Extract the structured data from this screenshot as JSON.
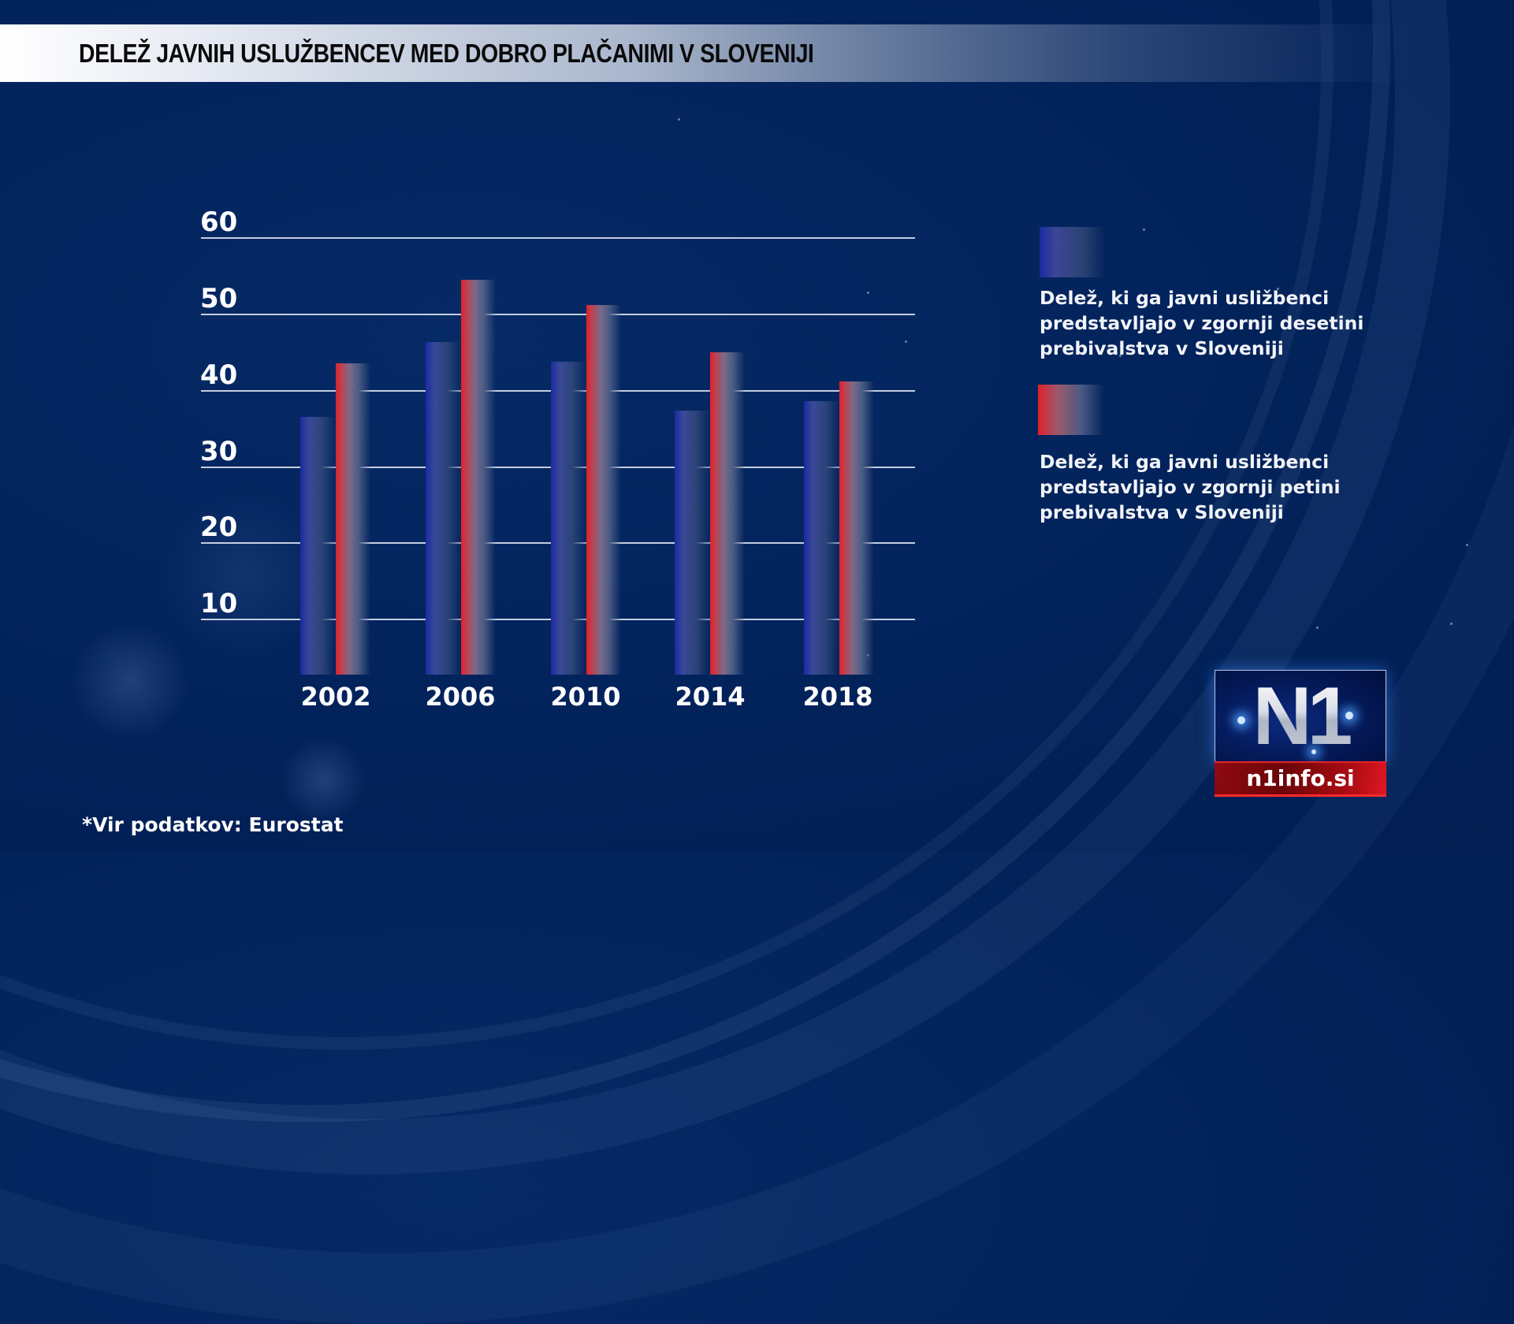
{
  "title": "DELEŽ JAVNIH USLUŽBENCEV MED DOBRO PLAČANIMI V SLOVENIJI",
  "footnote": "*Vir podatkov: Eurostat",
  "logo": {
    "mark": "N1",
    "site": "n1info.si"
  },
  "colors": {
    "background": "#02225a",
    "series_blue": "#1a2ba0",
    "series_red": "#e0202c",
    "logo_red": "#b00d14"
  },
  "legend": [
    {
      "series": "blue",
      "lines": [
        "Delež, ki ga javni usližbenci",
        "predstavljajo v zgornji desetini",
        "prebivalstva v Sloveniji"
      ]
    },
    {
      "series": "red",
      "lines": [
        "Delež, ki ga javni usližbenci",
        "predstavljajo v zgornji petini",
        "prebivalstva v Sloveniji"
      ]
    }
  ],
  "y_ticks": [
    "60",
    "50",
    "40",
    "30",
    "20",
    "10"
  ],
  "x_labels": [
    "2002",
    "2006",
    "2010",
    "2014",
    "2018"
  ],
  "chart_data": {
    "type": "bar",
    "title": "DELEŽ JAVNIH USLUŽBENCEV MED DOBRO PLAČANIMI V SLOVENIJI",
    "xlabel": "",
    "ylabel": "",
    "categories": [
      "2002",
      "2006",
      "2010",
      "2014",
      "2018"
    ],
    "series": [
      {
        "name": "Delež, ki ga javni usližbenci predstavljajo v zgornji desetini prebivalstva v Sloveniji",
        "color": "#1a2ba0",
        "values": [
          36.5,
          46.4,
          43.8,
          37.4,
          38.6
        ]
      },
      {
        "name": "Delež, ki ga javni usližbenci predstavljajo v zgornji petini prebivalstva v Sloveniji",
        "color": "#e0202c",
        "values": [
          43.6,
          54.5,
          51.2,
          45.0,
          41.2
        ]
      }
    ],
    "y_ticks": [
      10,
      20,
      30,
      40,
      50,
      60
    ],
    "ylim": [
      0,
      60
    ],
    "grid": true,
    "legend_position": "right",
    "source": "*Vir podatkov: Eurostat"
  }
}
